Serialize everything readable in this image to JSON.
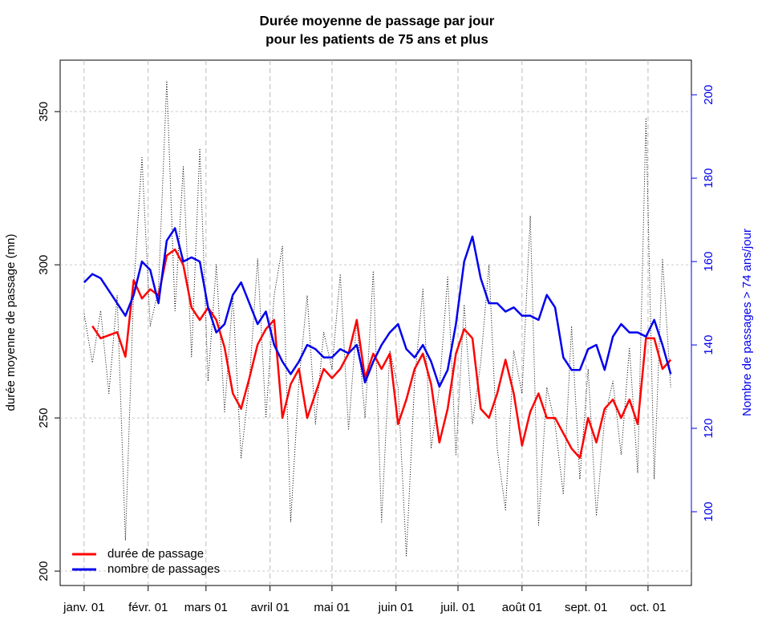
{
  "chart_data": {
    "type": "line",
    "title": [
      "Durée moyenne de passage par jour",
      "pour les patients de 75 ans et plus"
    ],
    "ylabel": "durée moyenne de passage (mn)",
    "y2label": "Nombre de passages > 74 ans/jour",
    "x": [
      0,
      4,
      8,
      12,
      16,
      20,
      24,
      28,
      32,
      36,
      40,
      44,
      48,
      52,
      56,
      60,
      64,
      68,
      72,
      76,
      80,
      84,
      88,
      92,
      96,
      100,
      104,
      108,
      112,
      116,
      120,
      124,
      128,
      132,
      136,
      140,
      144,
      148,
      152,
      156,
      160,
      164,
      168,
      172,
      176,
      180,
      184,
      188,
      192,
      196,
      200,
      204,
      208,
      212,
      216,
      220,
      224,
      228,
      232,
      236,
      240,
      244,
      248,
      252,
      256,
      260,
      264,
      268,
      272,
      276,
      280,
      284
    ],
    "xlim": [
      -11.6,
      294
    ],
    "xticks": [
      {
        "value": 0,
        "label": "janv. 01"
      },
      {
        "value": 31,
        "label": "févr. 01"
      },
      {
        "value": 59,
        "label": "mars 01"
      },
      {
        "value": 90,
        "label": "avril 01"
      },
      {
        "value": 120,
        "label": "mai 01"
      },
      {
        "value": 151,
        "label": "juin 01"
      },
      {
        "value": 181,
        "label": "juil. 01"
      },
      {
        "value": 212,
        "label": "août 01"
      },
      {
        "value": 243,
        "label": "sept. 01"
      },
      {
        "value": 273,
        "label": "oct. 01"
      }
    ],
    "ylim": [
      195.3,
      366.8
    ],
    "yticks": [
      200,
      250,
      300,
      350
    ],
    "y2lim": [
      82.3,
      208.3
    ],
    "y2ticks": [
      100,
      120,
      140,
      160,
      180,
      200
    ],
    "y2color": "#0000ee",
    "grid": true,
    "legend": "bottomleft",
    "series": [
      {
        "color": "#000000",
        "linestyle": "dotted",
        "values": [
          284,
          268,
          285,
          258,
          290,
          210,
          292,
          335,
          280,
          292,
          360,
          285,
          332,
          270,
          338,
          262,
          300,
          252,
          290,
          237,
          262,
          302,
          250,
          290,
          306,
          216,
          262,
          290,
          248,
          278,
          266,
          297,
          246,
          282,
          250,
          298,
          216,
          272,
          260,
          205,
          262,
          292,
          240,
          260,
          296,
          238,
          287,
          248,
          268,
          300,
          240,
          220,
          272,
          258,
          316,
          215,
          260,
          248,
          225,
          280,
          230,
          266,
          218,
          250,
          262,
          238,
          273,
          232,
          348,
          230,
          302,
          260
        ]
      },
      {
        "name": "durée de passage",
        "color": "#ff0000",
        "linestyle": "solid",
        "values": [
          null,
          280,
          276,
          277,
          278,
          270,
          295,
          289,
          292,
          290,
          303,
          305,
          300,
          286,
          282,
          286,
          282,
          273,
          258,
          253,
          263,
          274,
          279,
          282,
          250,
          261,
          266,
          250,
          258,
          266,
          263,
          266,
          271,
          282,
          263,
          271,
          266,
          271,
          248,
          256,
          266,
          271,
          261,
          242,
          253,
          271,
          279,
          276,
          253,
          250,
          258,
          269,
          258,
          241,
          252,
          258,
          250,
          250,
          245,
          240,
          237,
          250,
          242,
          253,
          256,
          250,
          256,
          248,
          276,
          276,
          266,
          269
        ]
      },
      {
        "name": "nombre de passages",
        "color": "#0000ee",
        "linestyle": "solid",
        "axis": "y2",
        "values": [
          155,
          157,
          156,
          153,
          150,
          147,
          152,
          160,
          158,
          150,
          165,
          168,
          160,
          161,
          160,
          149,
          143,
          145,
          152,
          155,
          150,
          145,
          148,
          140,
          136,
          133,
          136,
          140,
          139,
          137,
          137,
          139,
          138,
          140,
          131,
          136,
          140,
          143,
          145,
          139,
          137,
          140,
          136,
          130,
          134,
          145,
          160,
          166,
          156,
          150,
          150,
          148,
          149,
          147,
          147,
          146,
          152,
          149,
          137,
          134,
          134,
          139,
          140,
          134,
          142,
          145,
          143,
          143,
          142,
          146,
          140,
          133
        ]
      }
    ]
  }
}
